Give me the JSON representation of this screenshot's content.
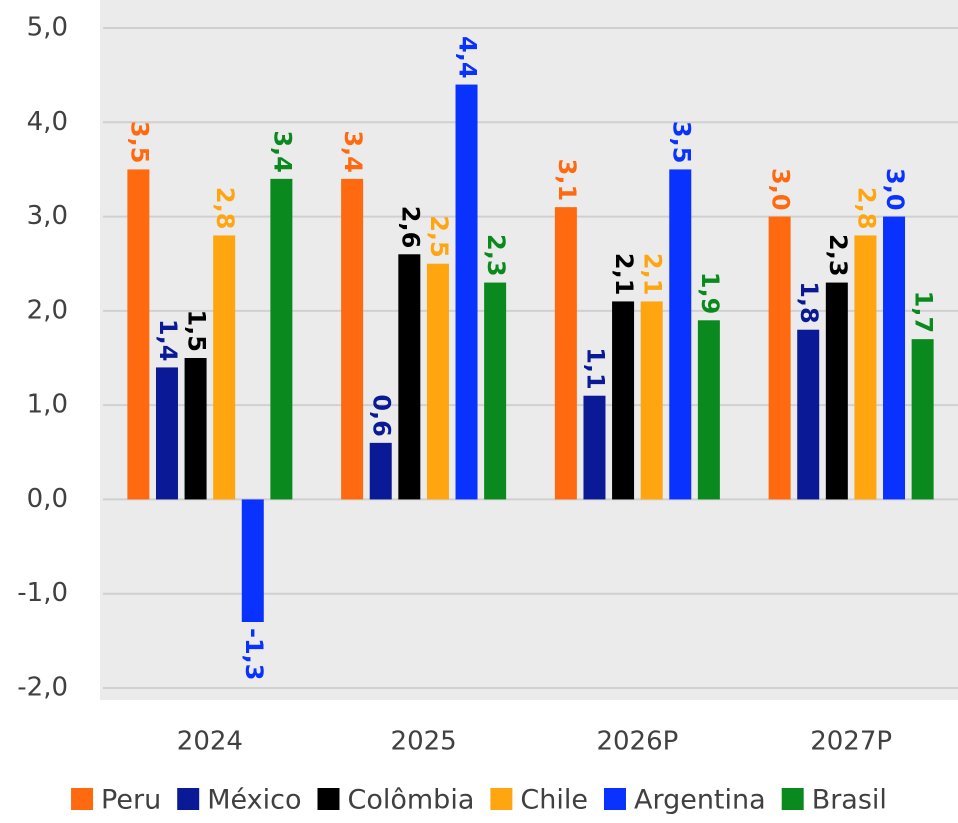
{
  "chart_data": {
    "type": "bar",
    "categories": [
      "2024",
      "2025",
      "2026P",
      "2027P"
    ],
    "series": [
      {
        "name": "Peru",
        "color": "#ff6a10",
        "values": [
          3.5,
          3.4,
          3.1,
          3.0
        ],
        "value_labels": [
          "3,5",
          "3,4",
          "3,1",
          "3,0"
        ]
      },
      {
        "name": "México",
        "color": "#0a1a96",
        "values": [
          1.4,
          0.6,
          1.1,
          1.8
        ],
        "value_labels": [
          "1,4",
          "0,6",
          "1,1",
          "1,8"
        ]
      },
      {
        "name": "Colômbia",
        "color": "#000000",
        "values": [
          1.5,
          2.6,
          2.1,
          2.3
        ],
        "value_labels": [
          "1,5",
          "2,6",
          "2,1",
          "2,3"
        ]
      },
      {
        "name": "Chile",
        "color": "#ffa510",
        "values": [
          2.8,
          2.5,
          2.1,
          2.8
        ],
        "value_labels": [
          "2,8",
          "2,5",
          "2,1",
          "2,8"
        ]
      },
      {
        "name": "Argentina",
        "color": "#0a32ff",
        "values": [
          -1.3,
          4.4,
          3.5,
          3.0
        ],
        "value_labels": [
          "-1,3",
          "4,4",
          "3,5",
          "3,0"
        ]
      },
      {
        "name": "Brasil",
        "color": "#0a8a1e",
        "values": [
          3.4,
          2.3,
          1.9,
          1.7
        ],
        "value_labels": [
          "3,4",
          "2,3",
          "1,9",
          "1,7"
        ]
      }
    ],
    "ylim": [
      -2,
      5
    ],
    "yticks": [
      {
        "value": -2,
        "label": "-2,0"
      },
      {
        "value": -1,
        "label": "-1,0"
      },
      {
        "value": 0,
        "label": "0,0"
      },
      {
        "value": 1,
        "label": "1,0"
      },
      {
        "value": 2,
        "label": "2,0"
      },
      {
        "value": 3,
        "label": "3,0"
      },
      {
        "value": 4,
        "label": "4,0"
      },
      {
        "value": 5,
        "label": "5,0"
      }
    ],
    "grid": true,
    "legend": "bottom"
  }
}
